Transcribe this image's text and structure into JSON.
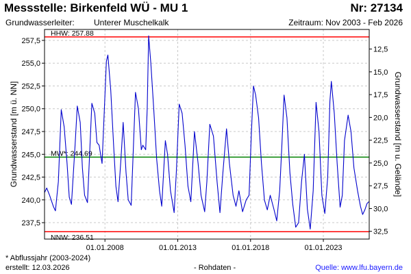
{
  "header": {
    "title": "Messstelle: Birkenfeld WÜ - MU 1",
    "nr": "Nr: 27134",
    "aquifer_label": "Grundwasserleiter:",
    "aquifer_value": "Unterer Muschelkalk",
    "period": "Zeitraum: Nov 2003 - Feb 2026"
  },
  "footer": {
    "footnote": "* Abflussjahr (2003-2024)",
    "created": "erstellt:  12.03.2026",
    "rawdata": "- Rohdaten -",
    "source": "Quelle:  www.lfu.bayern.de"
  },
  "chart_data": {
    "type": "line",
    "ylabel": "Grundwasserstand [m ü. NN]",
    "y2label": "Grundwasserstand [m u. Gelände]",
    "xlim": [
      2003.85,
      2026.15
    ],
    "ylim": [
      235.7,
      258.7
    ],
    "y2lim": [
      33.35,
      10.35
    ],
    "x_ticks": [
      {
        "year": 2008,
        "label": "01.01.2008"
      },
      {
        "year": 2013,
        "label": "01.01.2013"
      },
      {
        "year": 2018,
        "label": "01.01.2018"
      },
      {
        "year": 2023,
        "label": "01.01.2023"
      }
    ],
    "y_ticks": [
      {
        "value": 237.5,
        "label": "237,5"
      },
      {
        "value": 240.0,
        "label": "240,0"
      },
      {
        "value": 242.5,
        "label": "242,5"
      },
      {
        "value": 245.0,
        "label": "245,0"
      },
      {
        "value": 247.5,
        "label": "247,5"
      },
      {
        "value": 250.0,
        "label": "250,0"
      },
      {
        "value": 252.5,
        "label": "252,5"
      },
      {
        "value": 255.0,
        "label": "255,0"
      },
      {
        "value": 257.5,
        "label": "257,5"
      }
    ],
    "y2_ticks": [
      {
        "value": 12.5,
        "label": "12,5"
      },
      {
        "value": 15.0,
        "label": "15,0"
      },
      {
        "value": 17.5,
        "label": "17,5"
      },
      {
        "value": 20.0,
        "label": "20,0"
      },
      {
        "value": 22.5,
        "label": "22,5"
      },
      {
        "value": 25.0,
        "label": "25,0"
      },
      {
        "value": 27.5,
        "label": "27,5"
      },
      {
        "value": 30.0,
        "label": "30,0"
      },
      {
        "value": 32.5,
        "label": "32,5"
      }
    ],
    "reference_lines": [
      {
        "label": "HHW: 257.88",
        "value": 257.88,
        "color": "#ff0000"
      },
      {
        "label": "MW*: 244.69",
        "value": 244.69,
        "color": "#008000"
      },
      {
        "label": "NNW: 236.51",
        "value": 236.51,
        "color": "#ff0000"
      }
    ],
    "grid": true,
    "series": [
      {
        "color": "#0000cc",
        "points": [
          [
            2003.85,
            240.8
          ],
          [
            2004.0,
            241.3
          ],
          [
            2004.2,
            240.5
          ],
          [
            2004.45,
            239.3
          ],
          [
            2004.6,
            238.8
          ],
          [
            2004.8,
            242.0
          ],
          [
            2005.0,
            249.9
          ],
          [
            2005.2,
            248.0
          ],
          [
            2005.4,
            244.0
          ],
          [
            2005.55,
            240.3
          ],
          [
            2005.7,
            239.5
          ],
          [
            2005.95,
            246.0
          ],
          [
            2006.1,
            250.3
          ],
          [
            2006.3,
            248.5
          ],
          [
            2006.45,
            243.5
          ],
          [
            2006.6,
            240.5
          ],
          [
            2006.8,
            239.7
          ],
          [
            2007.1,
            250.6
          ],
          [
            2007.3,
            249.5
          ],
          [
            2007.45,
            246.3
          ],
          [
            2007.6,
            246.0
          ],
          [
            2007.8,
            244.0
          ],
          [
            2008.1,
            255.2
          ],
          [
            2008.2,
            255.9
          ],
          [
            2008.4,
            252.0
          ],
          [
            2008.6,
            245.8
          ],
          [
            2008.75,
            241.5
          ],
          [
            2008.9,
            239.8
          ],
          [
            2009.1,
            244.5
          ],
          [
            2009.25,
            248.5
          ],
          [
            2009.45,
            243.0
          ],
          [
            2009.6,
            240.0
          ],
          [
            2009.8,
            239.4
          ],
          [
            2010.1,
            251.8
          ],
          [
            2010.3,
            250.0
          ],
          [
            2010.5,
            245.5
          ],
          [
            2010.6,
            246.0
          ],
          [
            2010.8,
            245.5
          ],
          [
            2010.9,
            250.0
          ],
          [
            2011.0,
            258.0
          ],
          [
            2011.15,
            255.0
          ],
          [
            2011.35,
            250.0
          ],
          [
            2011.55,
            244.5
          ],
          [
            2011.75,
            241.0
          ],
          [
            2011.9,
            239.3
          ],
          [
            2012.15,
            246.5
          ],
          [
            2012.3,
            245.0
          ],
          [
            2012.5,
            241.0
          ],
          [
            2012.75,
            238.6
          ],
          [
            2012.9,
            243.0
          ],
          [
            2013.1,
            250.5
          ],
          [
            2013.3,
            249.5
          ],
          [
            2013.5,
            246.0
          ],
          [
            2013.7,
            241.5
          ],
          [
            2013.9,
            239.8
          ],
          [
            2014.15,
            247.5
          ],
          [
            2014.4,
            244.0
          ],
          [
            2014.6,
            240.5
          ],
          [
            2014.85,
            238.7
          ],
          [
            2015.0,
            242.0
          ],
          [
            2015.2,
            248.3
          ],
          [
            2015.45,
            247.0
          ],
          [
            2015.7,
            242.0
          ],
          [
            2015.9,
            238.6
          ],
          [
            2016.1,
            243.0
          ],
          [
            2016.35,
            247.8
          ],
          [
            2016.55,
            244.0
          ],
          [
            2016.8,
            240.5
          ],
          [
            2017.0,
            239.3
          ],
          [
            2017.2,
            241.0
          ],
          [
            2017.45,
            238.7
          ],
          [
            2017.7,
            240.0
          ],
          [
            2017.9,
            240.5
          ],
          [
            2018.05,
            247.0
          ],
          [
            2018.2,
            252.5
          ],
          [
            2018.35,
            251.5
          ],
          [
            2018.55,
            249.0
          ],
          [
            2018.75,
            244.0
          ],
          [
            2018.95,
            240.0
          ],
          [
            2019.15,
            238.9
          ],
          [
            2019.35,
            240.5
          ],
          [
            2019.6,
            239.0
          ],
          [
            2019.8,
            237.7
          ],
          [
            2020.0,
            241.0
          ],
          [
            2020.15,
            246.0
          ],
          [
            2020.3,
            251.5
          ],
          [
            2020.5,
            249.0
          ],
          [
            2020.7,
            243.0
          ],
          [
            2020.9,
            239.5
          ],
          [
            2021.1,
            237.0
          ],
          [
            2021.3,
            237.5
          ],
          [
            2021.5,
            242.0
          ],
          [
            2021.7,
            245.0
          ],
          [
            2021.9,
            239.0
          ],
          [
            2022.1,
            236.8
          ],
          [
            2022.3,
            241.0
          ],
          [
            2022.5,
            250.7
          ],
          [
            2022.7,
            247.5
          ],
          [
            2022.9,
            240.5
          ],
          [
            2023.1,
            238.5
          ],
          [
            2023.3,
            242.5
          ],
          [
            2023.45,
            250.8
          ],
          [
            2023.55,
            253.0
          ],
          [
            2023.75,
            249.5
          ],
          [
            2023.95,
            244.0
          ],
          [
            2024.15,
            239.2
          ],
          [
            2024.3,
            240.5
          ],
          [
            2024.45,
            246.5
          ],
          [
            2024.7,
            249.3
          ],
          [
            2024.9,
            247.5
          ],
          [
            2025.1,
            243.5
          ],
          [
            2025.35,
            241.0
          ],
          [
            2025.55,
            239.3
          ],
          [
            2025.7,
            238.4
          ],
          [
            2025.85,
            238.9
          ],
          [
            2026.0,
            239.6
          ],
          [
            2026.12,
            239.8
          ]
        ]
      }
    ]
  }
}
